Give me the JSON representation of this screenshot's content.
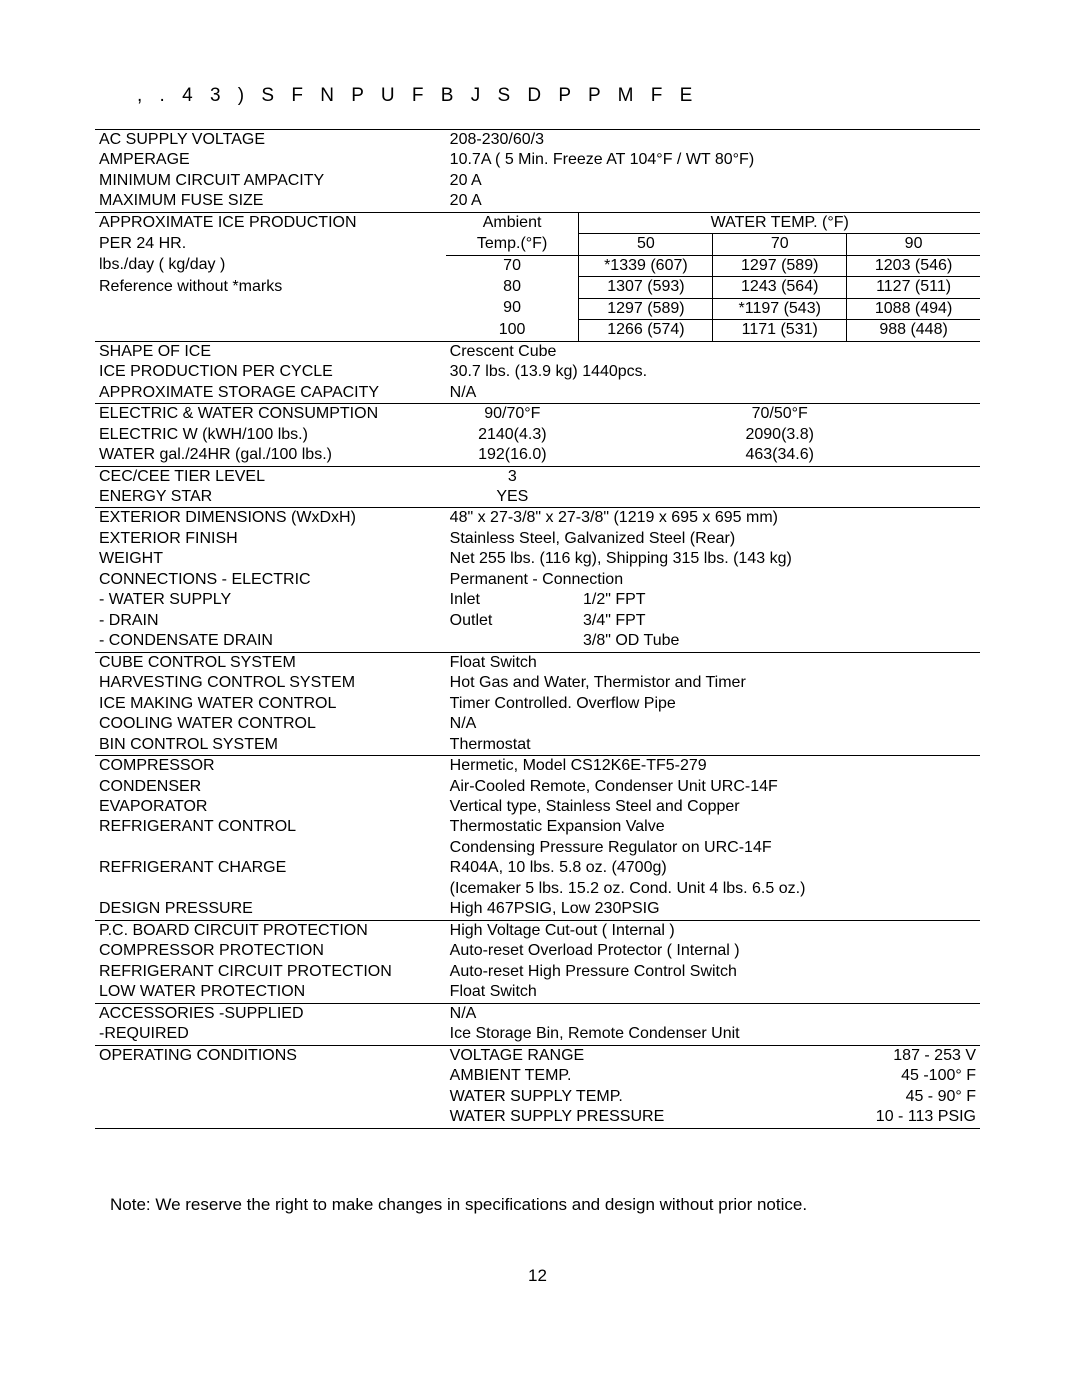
{
  "header": ", .     4 3 )    S F N P U F   B J S   D P P M F E",
  "rows": {
    "acsv_l": "AC SUPPLY VOLTAGE",
    "acsv_v": "208-230/60/3",
    "amp_l": "AMPERAGE",
    "amp_v": "10.7A  ( 5 Min. Freeze AT 104°F / WT 80°F)",
    "mca_l": "MINIMUM CIRCUIT AMPACITY",
    "mca_v": "20 A",
    "mfs_l": "MAXIMUM FUSE SIZE",
    "mfs_v": "20 A",
    "approx_l1": "APPROXIMATE ICE PRODUCTION",
    "approx_l2": "PER 24 HR.",
    "approx_l3": "lbs./day ( kg/day )",
    "approx_l4": "Reference without *marks",
    "ambient": "Ambient",
    "watertemp": "WATER TEMP. (°F)",
    "tempf": "Temp.(°F)",
    "h50": "50",
    "h70": "70",
    "h90": "90",
    "r70": "70",
    "r70_50": "*1339 (607)",
    "r70_70": "1297 (589)",
    "r70_90": "1203 (546)",
    "r80": "80",
    "r80_50": "1307 (593)",
    "r80_70": "1243 (564)",
    "r80_90": "1127 (511)",
    "r90": "90",
    "r90_50": "1297 (589)",
    "r90_70": "*1197 (543)",
    "r90_90": "1088 (494)",
    "r100": "100",
    "r100_50": "1266 (574)",
    "r100_70": "1171 (531)",
    "r100_90": "988 (448)",
    "shape_l": "SHAPE OF ICE",
    "shape_v": "Crescent Cube",
    "ippc_l": "ICE PRODUCTION PER CYCLE",
    "ippc_v": "30.7 lbs. (13.9 kg)   1440pcs.",
    "asc_l": "APPROXIMATE STORAGE CAPACITY",
    "asc_v": "N/A",
    "ewc_l": "ELECTRIC & WATER CONSUMPTION",
    "ewc_h1": "90/70°F",
    "ewc_h2": "70/50°F",
    "ewc_e_l": "ELECTRIC   W (kWH/100 lbs.)",
    "ewc_e_1": "2140(4.3)",
    "ewc_e_2": "2090(3.8)",
    "ewc_w_l": "WATER   gal./24HR (gal./100 lbs.)",
    "ewc_w_1": "192(16.0)",
    "ewc_w_2": "463(34.6)",
    "cec_l": "CEC/CEE TIER LEVEL",
    "cec_v": "3",
    "es_l": "ENERGY STAR",
    "es_v": "YES",
    "ext_l": "EXTERIOR DIMENSIONS (WxDxH)",
    "ext_v": "48\" x 27-3/8\" x 27-3/8\"  (1219 x 695 x 695 mm)",
    "fin_l": "EXTERIOR FINISH",
    "fin_v": "Stainless Steel, Galvanized Steel (Rear)",
    "wt_l": "WEIGHT",
    "wt_v": "Net   255 lbs. (116 kg), Shipping  315 lbs. (143 kg)",
    "ce_l": "CONNECTIONS - ELECTRIC",
    "ce_v": "Permanent - Connection",
    "cws_l": "- WATER SUPPLY",
    "cws_v1": "Inlet",
    "cws_v2": "1/2\" FPT",
    "cd_l": "- DRAIN",
    "cd_v1": "Outlet",
    "cd_v2": "3/4\" FPT",
    "ccd_l": "- CONDENSATE DRAIN",
    "ccd_v": "3/8\" OD Tube",
    "ccs_l": "CUBE CONTROL SYSTEM",
    "ccs_v": "Float Switch",
    "hcs_l": "HARVESTING CONTROL SYSTEM",
    "hcs_v": "Hot Gas and Water,  Thermistor and Timer",
    "imw_l": "ICE MAKING WATER CONTROL",
    "imw_v": "Timer Controlled.  Overflow Pipe",
    "cwc_l": "COOLING WATER CONTROL",
    "cwc_v": "N/A",
    "bcs_l": "BIN CONTROL SYSTEM",
    "bcs_v": "Thermostat",
    "comp_l": "COMPRESSOR",
    "comp_v": "Hermetic, Model CS12K6E-TF5-279",
    "cond_l": "CONDENSER",
    "cond_v": "Air-Cooled Remote, Condenser Unit URC-14F",
    "evap_l": "EVAPORATOR",
    "evap_v": "Vertical type,  Stainless Steel and Copper",
    "rc_l": "REFRIGERANT CONTROL",
    "rc_v1": "Thermostatic Expansion Valve",
    "rc_v2": "Condensing Pressure Regulator on URC-14F",
    "rch_l": "REFRIGERANT CHARGE",
    "rch_v1": "R404A,  10 lbs. 5.8 oz.  (4700g)",
    "rch_v2": "(Icemaker 5 lbs. 15.2 oz. Cond. Unit 4 lbs. 6.5 oz.)",
    "dp_l": "DESIGN PRESSURE",
    "dp_v": "High 467PSIG,  Low 230PSIG",
    "pcb_l": "P.C. BOARD CIRCUIT PROTECTION",
    "pcb_v": "High Voltage Cut-out ( Internal )",
    "cp_l": "COMPRESSOR PROTECTION",
    "cp_v": "Auto-reset Overload Protector ( Internal )",
    "rcp_l": "REFRIGERANT CIRCUIT PROTECTION",
    "rcp_v": "Auto-reset High Pressure Control Switch",
    "lwp_l": "LOW WATER PROTECTION",
    "lwp_v": "Float Switch",
    "as_l": "ACCESSORIES -SUPPLIED",
    "as_v": "N/A",
    "ar_l": "-REQUIRED",
    "ar_v": "Ice Storage Bin, Remote Condenser Unit",
    "op_l": "OPERATING CONDITIONS",
    "op_vr_l": "VOLTAGE RANGE",
    "op_vr_v": "187 - 253 V",
    "op_at_l": "AMBIENT TEMP.",
    "op_at_v": "45 -100° F",
    "op_ws_l": "WATER SUPPLY TEMP.",
    "op_ws_v": "45 -  90° F",
    "op_wp_l": "WATER SUPPLY PRESSURE",
    "op_wp_v": "10 - 113 PSIG"
  },
  "note": "Note: We reserve the right to make changes in specifications and design without prior notice.",
  "pagenum": "12"
}
